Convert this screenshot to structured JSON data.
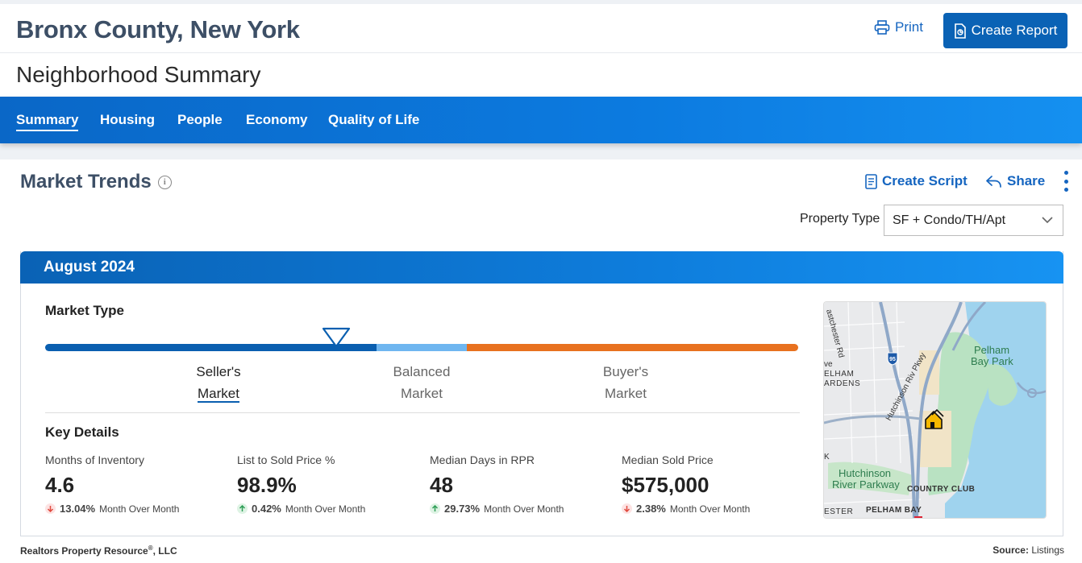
{
  "header": {
    "title": "Bronx County, New York",
    "print_label": "Print",
    "create_report_label": "Create Report"
  },
  "subheader": {
    "title": "Neighborhood Summary"
  },
  "nav": {
    "tabs": [
      {
        "label": "Summary",
        "active": true
      },
      {
        "label": "Housing"
      },
      {
        "label": "People"
      },
      {
        "label": "Economy"
      },
      {
        "label": "Quality of Life"
      }
    ]
  },
  "market_trends": {
    "title": "Market Trends",
    "create_script_label": "Create Script",
    "share_label": "Share",
    "property_type_label": "Property Type",
    "property_type_value": "SF + Condo/TH/Apt",
    "period": "August 2024",
    "market_type_title": "Market Type",
    "market_labels": {
      "seller_line1": "Seller's",
      "seller_line2": "Market",
      "balanced_line1": "Balanced",
      "balanced_line2": "Market",
      "buyer_line1": "Buyer's",
      "buyer_line2": "Market"
    },
    "key_details_title": "Key Details",
    "stats": [
      {
        "label": "Months of Inventory",
        "value": "4.6",
        "change": "13.04%",
        "direction": "down",
        "suffix": "Month Over Month"
      },
      {
        "label": "List to Sold Price %",
        "value": "98.9%",
        "change": "0.42%",
        "direction": "up",
        "suffix": "Month Over Month"
      },
      {
        "label": "Median Days in RPR",
        "value": "48",
        "change": "29.73%",
        "direction": "up",
        "suffix": "Month Over Month"
      },
      {
        "label": "Median Sold Price",
        "value": "$575,000",
        "change": "2.38%",
        "direction": "down",
        "suffix": "Month Over Month"
      }
    ]
  },
  "map": {
    "labels": {
      "eastchester_rd": "astchester Rd",
      "pelham1": "ELHAM",
      "pelham2": "ARDENS",
      "hwy": "95",
      "hutch_pkwy": "Hutchinson Riv Pkwy",
      "park1": "Pelham",
      "park2": "Bay Park",
      "ve": "ve",
      "k": "K",
      "hutch1": "Hutchinson",
      "hutch2": "River Parkway",
      "country_club": "COUNTRY CLUB",
      "chester": "ESTER",
      "pelham_bay": "PELHAM BAY"
    }
  },
  "footer": {
    "left": "Realtors Property Resource",
    "left_mark": "®",
    "left_suffix": ", LLC",
    "right_label": "Source:",
    "right_value": "Listings"
  },
  "colors": {
    "brand_blue": "#0a62b5",
    "seller": "#0a5fb0",
    "balanced": "#6fb6f0",
    "buyer": "#e8711f",
    "down": "#e04a3f",
    "up": "#2e9e56"
  }
}
